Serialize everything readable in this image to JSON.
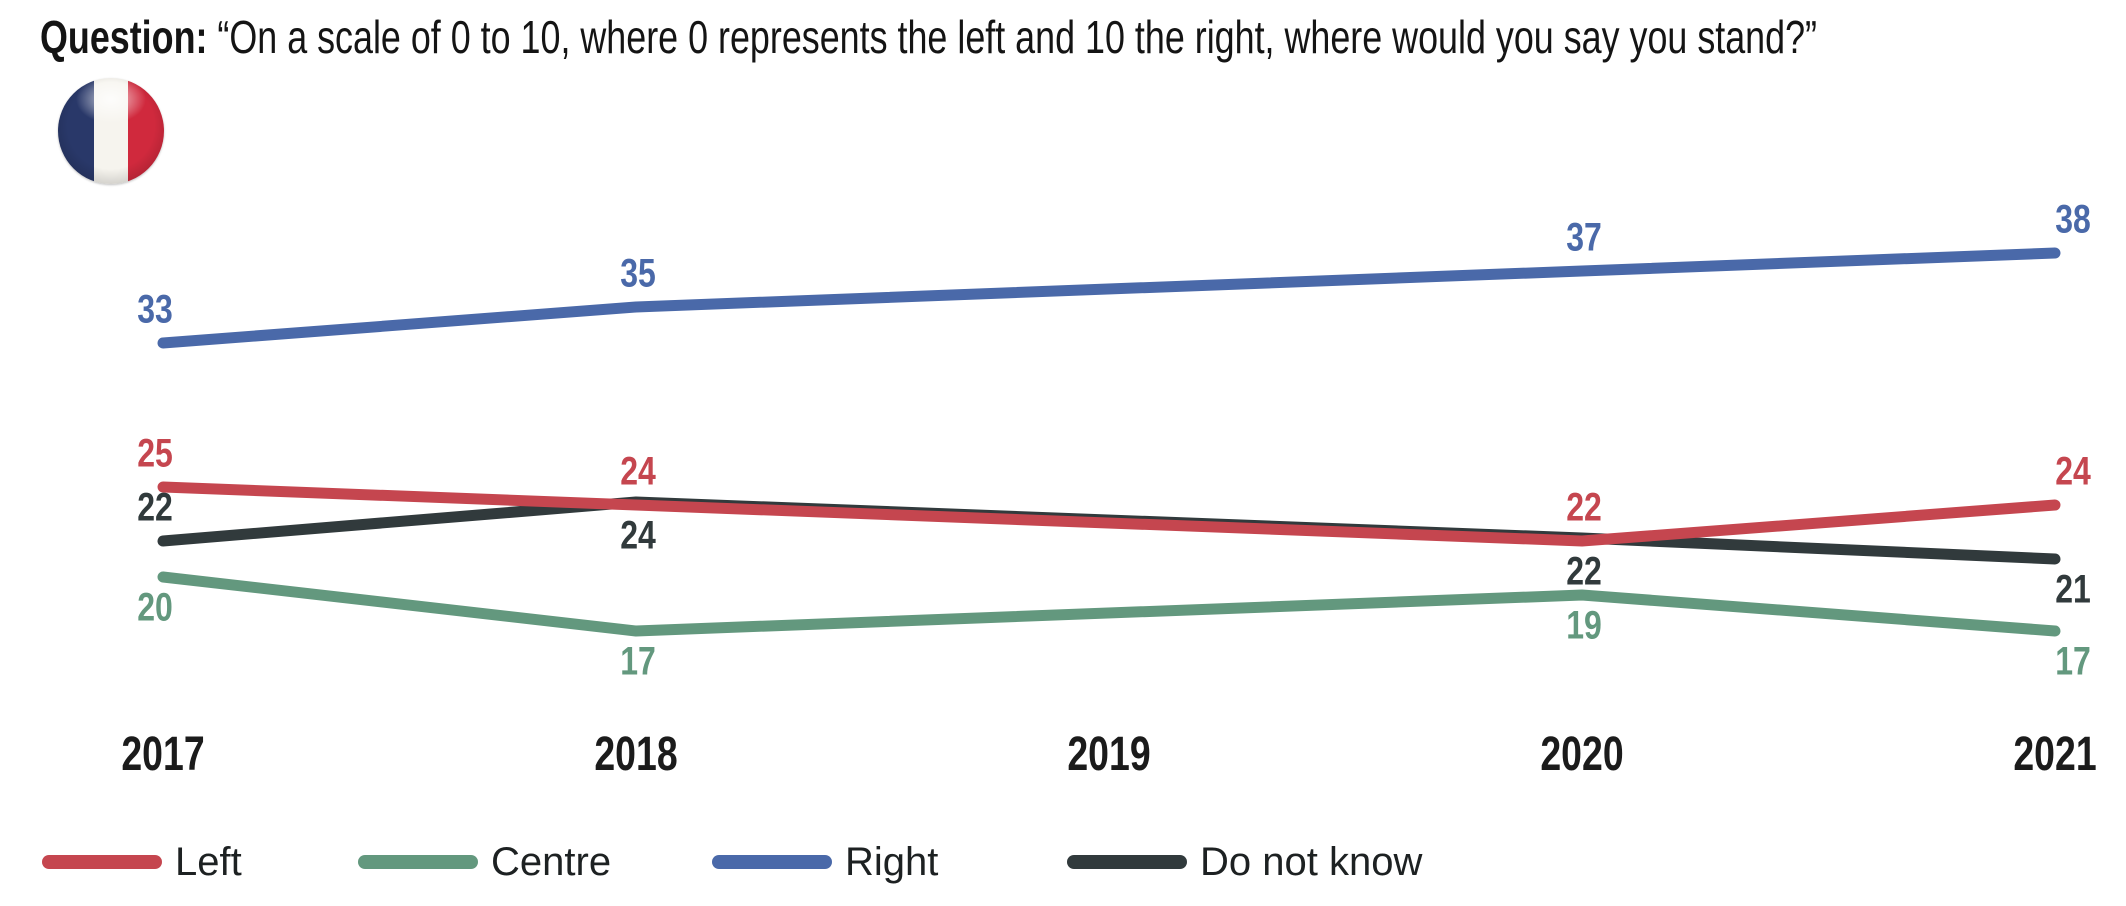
{
  "title": {
    "prefix": "Question:",
    "rest": " “On a scale of 0 to 10, where 0 represents the left and 10 the right, where would you say you stand?”"
  },
  "flag": {
    "country": "France",
    "colors": {
      "blue": "#293869",
      "white": "#f6f4ee",
      "red": "#d0293d"
    }
  },
  "chart_data": {
    "type": "line",
    "title": "",
    "xlabel": "",
    "ylabel": "",
    "x_ticks": [
      "2017",
      "2018",
      "2019",
      "2020",
      "2021"
    ],
    "note": "no data points at 2019; lines connect 2018 to 2020 directly",
    "grid": false,
    "legend_position": "bottom",
    "ylim_implied": [
      15,
      40
    ],
    "series": [
      {
        "name": "Left",
        "color": "#c5464f",
        "points": [
          {
            "x": 2017,
            "v": 25,
            "label_pos": "above"
          },
          {
            "x": 2018,
            "v": 24,
            "label_pos": "above"
          },
          {
            "x": 2020,
            "v": 22,
            "label_pos": "above"
          },
          {
            "x": 2021,
            "v": 24,
            "label_pos": "above"
          }
        ]
      },
      {
        "name": "Centre",
        "color": "#63987e",
        "points": [
          {
            "x": 2017,
            "v": 20,
            "label_pos": "below"
          },
          {
            "x": 2018,
            "v": 17,
            "label_pos": "below"
          },
          {
            "x": 2020,
            "v": 19,
            "label_pos": "below"
          },
          {
            "x": 2021,
            "v": 17,
            "label_pos": "below"
          }
        ]
      },
      {
        "name": "Right",
        "color": "#4a69a9",
        "points": [
          {
            "x": 2017,
            "v": 33,
            "label_pos": "above"
          },
          {
            "x": 2018,
            "v": 35,
            "label_pos": "above"
          },
          {
            "x": 2020,
            "v": 37,
            "label_pos": "above"
          },
          {
            "x": 2021,
            "v": 38,
            "label_pos": "above"
          }
        ]
      },
      {
        "name": "Do not know",
        "color": "#313a3c",
        "points": [
          {
            "x": 2017,
            "v": 22,
            "label_pos": "above"
          },
          {
            "x": 2018,
            "v": 24,
            "label_pos": "below"
          },
          {
            "x": 2020,
            "v": 22,
            "label_pos": "below"
          },
          {
            "x": 2021,
            "v": 21,
            "label_pos": "below"
          }
        ]
      }
    ]
  },
  "legend": {
    "items": [
      {
        "label": "Left",
        "color": "#c5464f"
      },
      {
        "label": "Centre",
        "color": "#63987e"
      },
      {
        "label": "Right",
        "color": "#4a69a9"
      },
      {
        "label": "Do not know",
        "color": "#313a3c"
      }
    ]
  }
}
